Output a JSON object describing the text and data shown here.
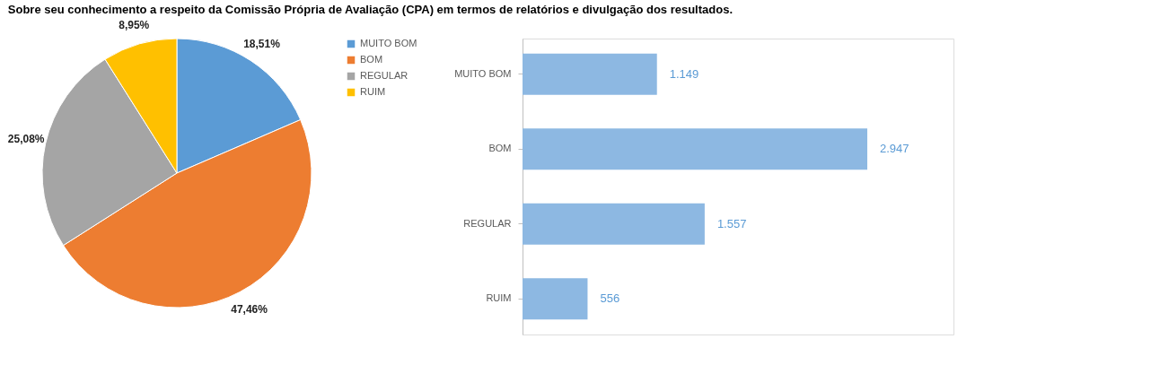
{
  "chart_data": [
    {
      "type": "pie",
      "title": "Sobre seu conhecimento a respeito da Comissão Própria de Avaliação (CPA) em termos de relatórios e divulgação dos resultados.",
      "categories": [
        "MUITO BOM",
        "BOM",
        "REGULAR",
        "RUIM"
      ],
      "values": [
        18.51,
        47.46,
        25.08,
        8.95
      ],
      "value_labels": [
        "18,51%",
        "47,46%",
        "25,08%",
        "8,95%"
      ],
      "colors": [
        "#5b9bd5",
        "#ed7d31",
        "#a5a5a5",
        "#ffc000"
      ],
      "legend": "right"
    },
    {
      "type": "bar",
      "orientation": "horizontal",
      "categories": [
        "MUITO BOM",
        "BOM",
        "REGULAR",
        "RUIM"
      ],
      "values": [
        1149,
        2947,
        1557,
        556
      ],
      "value_labels": [
        "1.149",
        "2.947",
        "1.557",
        "556"
      ],
      "color": "#8db8e2"
    }
  ]
}
